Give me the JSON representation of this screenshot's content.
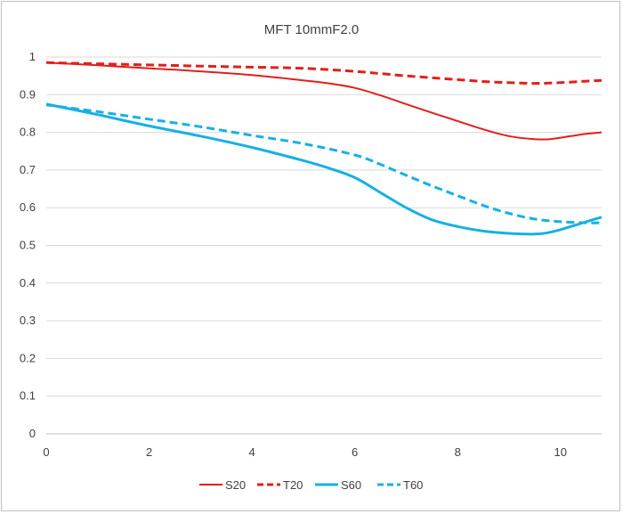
{
  "chart_data": {
    "type": "line",
    "title": "MFT  10mmF2.0",
    "xlabel": "",
    "ylabel": "",
    "xlim": [
      0,
      10.8
    ],
    "ylim": [
      0,
      1
    ],
    "x_ticks": [
      "0",
      "2",
      "4",
      "6",
      "8",
      "10"
    ],
    "y_ticks": [
      "0",
      "0.1",
      "0.2",
      "0.3",
      "0.4",
      "0.5",
      "0.6",
      "0.7",
      "0.8",
      "0.9",
      "1"
    ],
    "grid": "horizontal",
    "legend_position": "bottom",
    "series": [
      {
        "name": "S20",
        "color": "#e0201b",
        "dashed": false,
        "width": 2,
        "points": [
          [
            0,
            0.985
          ],
          [
            1,
            0.978
          ],
          [
            2,
            0.97
          ],
          [
            3,
            0.962
          ],
          [
            4,
            0.952
          ],
          [
            5,
            0.938
          ],
          [
            5.5,
            0.93
          ],
          [
            6,
            0.918
          ],
          [
            6.5,
            0.898
          ],
          [
            7,
            0.875
          ],
          [
            7.5,
            0.852
          ],
          [
            8,
            0.83
          ],
          [
            8.5,
            0.808
          ],
          [
            9,
            0.79
          ],
          [
            9.5,
            0.782
          ],
          [
            9.8,
            0.782
          ],
          [
            10.2,
            0.79
          ],
          [
            10.5,
            0.796
          ],
          [
            10.8,
            0.8
          ]
        ]
      },
      {
        "name": "T20",
        "color": "#e0201b",
        "dashed": true,
        "width": 3,
        "points": [
          [
            0,
            0.985
          ],
          [
            1,
            0.982
          ],
          [
            2,
            0.979
          ],
          [
            3,
            0.976
          ],
          [
            4,
            0.973
          ],
          [
            5,
            0.97
          ],
          [
            6,
            0.962
          ],
          [
            6.5,
            0.956
          ],
          [
            7,
            0.95
          ],
          [
            7.5,
            0.945
          ],
          [
            8,
            0.94
          ],
          [
            8.5,
            0.935
          ],
          [
            9,
            0.932
          ],
          [
            9.5,
            0.93
          ],
          [
            10,
            0.932
          ],
          [
            10.5,
            0.936
          ],
          [
            10.8,
            0.938
          ]
        ]
      },
      {
        "name": "S60",
        "color": "#17b0e3",
        "dashed": false,
        "width": 3,
        "points": [
          [
            0,
            0.875
          ],
          [
            1,
            0.847
          ],
          [
            2,
            0.817
          ],
          [
            3,
            0.79
          ],
          [
            4,
            0.76
          ],
          [
            5,
            0.725
          ],
          [
            5.5,
            0.705
          ],
          [
            6,
            0.68
          ],
          [
            6.5,
            0.64
          ],
          [
            7,
            0.6
          ],
          [
            7.5,
            0.568
          ],
          [
            8,
            0.55
          ],
          [
            8.5,
            0.538
          ],
          [
            9,
            0.532
          ],
          [
            9.5,
            0.53
          ],
          [
            9.8,
            0.535
          ],
          [
            10.2,
            0.55
          ],
          [
            10.5,
            0.563
          ],
          [
            10.8,
            0.575
          ]
        ]
      },
      {
        "name": "T60",
        "color": "#17b0e3",
        "dashed": true,
        "width": 3,
        "points": [
          [
            0,
            0.873
          ],
          [
            1,
            0.855
          ],
          [
            2,
            0.835
          ],
          [
            3,
            0.815
          ],
          [
            4,
            0.792
          ],
          [
            5,
            0.77
          ],
          [
            6,
            0.74
          ],
          [
            6.5,
            0.715
          ],
          [
            7,
            0.686
          ],
          [
            7.5,
            0.658
          ],
          [
            8,
            0.632
          ],
          [
            8.5,
            0.606
          ],
          [
            9,
            0.585
          ],
          [
            9.5,
            0.57
          ],
          [
            10,
            0.563
          ],
          [
            10.5,
            0.56
          ],
          [
            10.8,
            0.56
          ]
        ]
      }
    ]
  }
}
